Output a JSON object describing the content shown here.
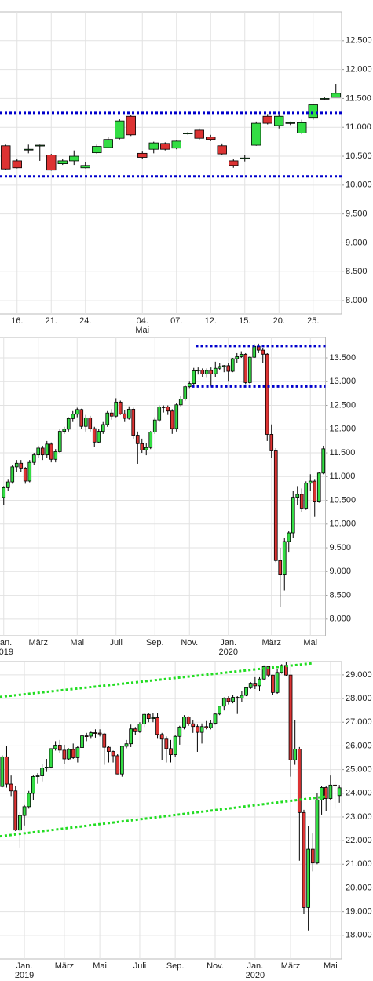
{
  "chart_data": [
    {
      "type": "candlestick",
      "up_color": "#33dd44",
      "down_color": "#dd3333",
      "grid": true,
      "ylim": [
        7770,
        13000
      ],
      "yticks": [
        {
          "value": 8000,
          "label": "8.000"
        },
        {
          "value": 8500,
          "label": "8.500"
        },
        {
          "value": 9000,
          "label": "9.000"
        },
        {
          "value": 9500,
          "label": "9.500"
        },
        {
          "value": 10000,
          "label": "10.000"
        },
        {
          "value": 10500,
          "label": "10.500"
        },
        {
          "value": 11000,
          "label": "11.000"
        },
        {
          "value": 11500,
          "label": "11.500"
        },
        {
          "value": 12000,
          "label": "12.000"
        },
        {
          "value": 12500,
          "label": "12.500"
        }
      ],
      "x_labels": [
        {
          "index": 1,
          "label": "16."
        },
        {
          "index": 4,
          "label": "21."
        },
        {
          "index": 7,
          "label": "24."
        },
        {
          "index": 12,
          "label": "04.",
          "sublabel": "Mai"
        },
        {
          "index": 15,
          "label": "07."
        },
        {
          "index": 18,
          "label": "12."
        },
        {
          "index": 21,
          "label": "15."
        },
        {
          "index": 24,
          "label": "20."
        },
        {
          "index": 27,
          "label": "25."
        }
      ],
      "open": [
        10680,
        10420,
        10620,
        10680,
        10520,
        10370,
        10420,
        10300,
        10560,
        10650,
        10810,
        11190,
        10550,
        10620,
        10720,
        10640,
        10890,
        10950,
        10830,
        10680,
        10420,
        10460,
        10690,
        11190,
        11030,
        11070,
        10900,
        11170,
        11490,
        11520
      ],
      "high": [
        10700,
        10450,
        10700,
        10700,
        10540,
        10450,
        10600,
        10400,
        10700,
        10830,
        11150,
        11210,
        10580,
        10750,
        10740,
        10770,
        10920,
        10980,
        10870,
        10720,
        10450,
        10520,
        11100,
        11230,
        11230,
        11100,
        11130,
        11400,
        11520,
        11750
      ],
      "low": [
        10260,
        10290,
        10550,
        10420,
        10250,
        10350,
        10350,
        10290,
        10540,
        10640,
        10790,
        10850,
        10460,
        10550,
        10600,
        10620,
        10870,
        10780,
        10760,
        10520,
        10300,
        10410,
        10680,
        11050,
        10980,
        11040,
        10880,
        11130,
        11480,
        11520
      ],
      "close": [
        10280,
        10300,
        10620,
        10690,
        10260,
        10420,
        10500,
        10340,
        10670,
        10790,
        11110,
        10870,
        10480,
        10730,
        10620,
        10760,
        10900,
        10810,
        10790,
        10540,
        10340,
        10470,
        11070,
        11070,
        11190,
        11080,
        11080,
        11390,
        11500,
        11590
      ],
      "hlines": [
        {
          "value": 11250,
          "from": -0.5,
          "to": 29.5,
          "color": "#0000cc"
        },
        {
          "value": 10150,
          "from": -0.5,
          "to": 29.5,
          "color": "#0000cc"
        }
      ]
    },
    {
      "type": "candlestick",
      "up_color": "#33dd44",
      "down_color": "#dd3333",
      "grid": true,
      "ylim": [
        7650,
        13930
      ],
      "yticks": [
        {
          "value": 8000,
          "label": "8.000"
        },
        {
          "value": 8500,
          "label": "8.500"
        },
        {
          "value": 9000,
          "label": "9.000"
        },
        {
          "value": 9500,
          "label": "9.500"
        },
        {
          "value": 10000,
          "label": "10.000"
        },
        {
          "value": 10500,
          "label": "10.500"
        },
        {
          "value": 11000,
          "label": "11.000"
        },
        {
          "value": 11500,
          "label": "11.500"
        },
        {
          "value": 12000,
          "label": "12.000"
        },
        {
          "value": 12500,
          "label": "12.500"
        },
        {
          "value": 13000,
          "label": "13.000"
        },
        {
          "value": 13500,
          "label": "13.500"
        }
      ],
      "x_labels": [
        {
          "index": 0,
          "label": "Jan.",
          "sublabel": "2019"
        },
        {
          "index": 8,
          "label": "März"
        },
        {
          "index": 17,
          "label": "Mai"
        },
        {
          "index": 26,
          "label": "Juli"
        },
        {
          "index": 35,
          "label": "Sep."
        },
        {
          "index": 43,
          "label": "Nov."
        },
        {
          "index": 52,
          "label": "Jan.",
          "sublabel": "2020"
        },
        {
          "index": 62,
          "label": "März"
        },
        {
          "index": 71,
          "label": "Mai"
        }
      ],
      "open": [
        10560,
        10767,
        10888,
        11205,
        11281,
        11180,
        10906,
        11299,
        11457,
        11601,
        11457,
        11685,
        11364,
        11526,
        11954,
        11999,
        12222,
        12315,
        12412,
        12059,
        12238,
        12011,
        11727,
        11953,
        12096,
        12340,
        12274,
        12569,
        12323,
        12227,
        12419,
        11872,
        11694,
        11562,
        11612,
        11939,
        12192,
        12469,
        12468,
        12381,
        12013,
        12512,
        12634,
        12894,
        12962,
        13228,
        13242,
        13164,
        13236,
        13166,
        13282,
        13319,
        13337,
        13219,
        13483,
        13526,
        13577,
        12981,
        13514,
        13744,
        13664,
        13579,
        11890,
        11542,
        9232,
        8929,
        9633,
        9815,
        10565,
        10626,
        10336,
        10861,
        10904,
        10466,
        11074
      ],
      "high": [
        10800,
        10950,
        11250,
        11350,
        11350,
        11200,
        11350,
        11500,
        11650,
        11650,
        11750,
        11720,
        11580,
        12000,
        12050,
        12250,
        12380,
        12450,
        12430,
        12300,
        12280,
        12050,
        12000,
        12150,
        12380,
        12420,
        12650,
        12600,
        12400,
        12480,
        12450,
        11950,
        11800,
        11700,
        11960,
        12250,
        12500,
        12500,
        12500,
        12420,
        12550,
        12700,
        12920,
        13000,
        13290,
        13300,
        13280,
        13280,
        13300,
        13420,
        13400,
        13350,
        13390,
        13500,
        13600,
        13640,
        13600,
        13550,
        13790,
        13800,
        13700,
        13600,
        12100,
        11600,
        9500,
        9700,
        9850,
        10700,
        10800,
        10750,
        10900,
        11050,
        10950,
        11100,
        11650
      ],
      "low": [
        10400,
        10700,
        10850,
        11100,
        11100,
        10850,
        10880,
        11250,
        11400,
        11350,
        11400,
        11300,
        11300,
        11500,
        11900,
        11950,
        12150,
        12250,
        12000,
        11950,
        11950,
        11620,
        11700,
        11900,
        12050,
        12200,
        12250,
        12300,
        12150,
        12200,
        11800,
        11270,
        11500,
        11450,
        11580,
        11900,
        12150,
        12350,
        12300,
        11900,
        11950,
        12480,
        12600,
        12850,
        12940,
        13150,
        13100,
        13080,
        12900,
        13100,
        13250,
        13200,
        13000,
        13200,
        13400,
        13500,
        12950,
        12950,
        13500,
        13600,
        13400,
        11750,
        11400,
        9200,
        8250,
        8600,
        9400,
        9700,
        10400,
        10250,
        10300,
        10700,
        10150,
        10450,
        11050
      ],
      "close": [
        10767,
        10888,
        11205,
        11281,
        11180,
        10906,
        11299,
        11457,
        11601,
        11457,
        11685,
        11364,
        11526,
        11954,
        11999,
        12222,
        12315,
        12412,
        12059,
        12238,
        12011,
        11727,
        11953,
        12096,
        12340,
        12274,
        12569,
        12323,
        12227,
        12419,
        11872,
        11694,
        11562,
        11612,
        11939,
        12192,
        12469,
        12468,
        12381,
        12013,
        12512,
        12634,
        12894,
        12962,
        13228,
        13242,
        13164,
        13236,
        13166,
        13282,
        13319,
        13337,
        13219,
        13483,
        13526,
        13577,
        12981,
        13514,
        13744,
        13664,
        13579,
        11890,
        11542,
        9232,
        8929,
        9633,
        9815,
        10565,
        10626,
        10336,
        10861,
        10904,
        10466,
        11074,
        11586
      ],
      "hlines": [
        {
          "value": 13750,
          "from": 44.5,
          "to": 75,
          "color": "#0000cc"
        },
        {
          "value": 12900,
          "from": 43.6,
          "to": 75,
          "color": "#0000cc"
        }
      ]
    },
    {
      "type": "candlestick",
      "up_color": "#33dd44",
      "down_color": "#dd3333",
      "grid": true,
      "ylim": [
        17000,
        29560
      ],
      "yticks": [
        {
          "value": 18000,
          "label": "18.000"
        },
        {
          "value": 19000,
          "label": "19.000"
        },
        {
          "value": 20000,
          "label": "20.000"
        },
        {
          "value": 21000,
          "label": "21.000"
        },
        {
          "value": 22000,
          "label": "22.000"
        },
        {
          "value": 23000,
          "label": "23.000"
        },
        {
          "value": 24000,
          "label": "24.000"
        },
        {
          "value": 25000,
          "label": "25.000"
        },
        {
          "value": 26000,
          "label": "26.000"
        },
        {
          "value": 27000,
          "label": "27.000"
        },
        {
          "value": 28000,
          "label": "28.000"
        },
        {
          "value": 29000,
          "label": "29.000"
        }
      ],
      "x_labels": [
        {
          "index": 5,
          "label": "Jan.",
          "sublabel": "2019"
        },
        {
          "index": 14,
          "label": "März"
        },
        {
          "index": 22,
          "label": "Mai"
        },
        {
          "index": 31,
          "label": "Juli"
        },
        {
          "index": 39,
          "label": "Sep."
        },
        {
          "index": 48,
          "label": "Nov."
        },
        {
          "index": 57,
          "label": "Jan.",
          "sublabel": "2020"
        },
        {
          "index": 65,
          "label": "März"
        },
        {
          "index": 74,
          "label": "Mai"
        }
      ],
      "open": [
        24286,
        25538,
        24389,
        24100,
        22445,
        23062,
        23433,
        23996,
        24706,
        24737,
        25064,
        25106,
        25883,
        26031,
        25819,
        25450,
        25849,
        25502,
        25929,
        26425,
        26412,
        26559,
        26543,
        26505,
        25942,
        25764,
        25586,
        24815,
        25984,
        26090,
        26719,
        26600,
        26922,
        27332,
        27154,
        27192,
        26485,
        26287,
        25886,
        25629,
        26403,
        26797,
        27220,
        26935,
        26820,
        26573,
        26817,
        26770,
        26958,
        27347,
        27681,
        28005,
        27876,
        28051,
        28015,
        28135,
        28455,
        28645,
        28538,
        28824,
        29348,
        28990,
        28256,
        29102,
        29398,
        28992,
        25409,
        25865,
        23186,
        19174,
        21637,
        21053,
        23719,
        24242,
        23775,
        24346,
        23900
      ],
      "high": [
        25600,
        25980,
        24750,
        24300,
        23200,
        23500,
        24100,
        24750,
        24850,
        25250,
        25450,
        25900,
        26200,
        26250,
        26050,
        25900,
        26100,
        26000,
        26450,
        26550,
        26600,
        26700,
        26700,
        26550,
        26000,
        25800,
        25650,
        26000,
        26250,
        26900,
        26800,
        27000,
        27400,
        27400,
        27400,
        27400,
        26550,
        26400,
        26250,
        26450,
        26850,
        27300,
        27250,
        27100,
        26900,
        26950,
        27050,
        27100,
        27400,
        27700,
        28050,
        28100,
        28150,
        28100,
        28300,
        28500,
        28700,
        28900,
        28900,
        29400,
        29380,
        29000,
        29250,
        29450,
        29550,
        29000,
        27100,
        25950,
        23300,
        22600,
        22300,
        24000,
        24300,
        24300,
        24750,
        24500,
        24350
      ],
      "low": [
        24250,
        24240,
        23880,
        22400,
        21710,
        22640,
        23350,
        23700,
        24400,
        24500,
        24900,
        25050,
        25800,
        25700,
        25250,
        25400,
        25450,
        25300,
        25900,
        26200,
        26300,
        26350,
        26400,
        25200,
        25300,
        25300,
        24800,
        24700,
        25900,
        25950,
        26450,
        26550,
        26800,
        27000,
        27000,
        26300,
        25400,
        25300,
        25300,
        25550,
        26050,
        26700,
        26850,
        26550,
        25750,
        26100,
        26700,
        26700,
        26900,
        27300,
        27500,
        27750,
        27800,
        27350,
        27850,
        28100,
        28400,
        28400,
        28300,
        28800,
        28900,
        28150,
        28200,
        29050,
        28950,
        24700,
        25200,
        21150,
        18900,
        18200,
        20700,
        21000,
        23100,
        23250,
        23700,
        23350,
        23600
      ],
      "close": [
        25538,
        24389,
        24100,
        22445,
        23062,
        23433,
        23996,
        24706,
        24737,
        25064,
        25106,
        25883,
        26031,
        25819,
        25450,
        25849,
        25502,
        25929,
        26425,
        26412,
        26559,
        26543,
        26505,
        25942,
        25764,
        25586,
        24815,
        25984,
        26090,
        26719,
        26600,
        26922,
        27332,
        27154,
        27192,
        26485,
        26287,
        25886,
        25629,
        26403,
        26797,
        27220,
        26935,
        26820,
        26573,
        26817,
        26770,
        26958,
        27347,
        27681,
        28005,
        27876,
        28051,
        28015,
        28135,
        28455,
        28645,
        28538,
        28824,
        29348,
        28990,
        28256,
        29102,
        29398,
        28992,
        25409,
        25865,
        23186,
        19174,
        21637,
        21053,
        23719,
        24242,
        23775,
        24346,
        24331,
        24230
      ],
      "trendlines": [
        {
          "x": [
            -0.5,
            70
          ],
          "y": [
            28070,
            29490
          ],
          "color": "#22dd22"
        },
        {
          "x": [
            -0.5,
            73
          ],
          "y": [
            22180,
            23860
          ],
          "color": "#22dd22"
        }
      ]
    }
  ]
}
